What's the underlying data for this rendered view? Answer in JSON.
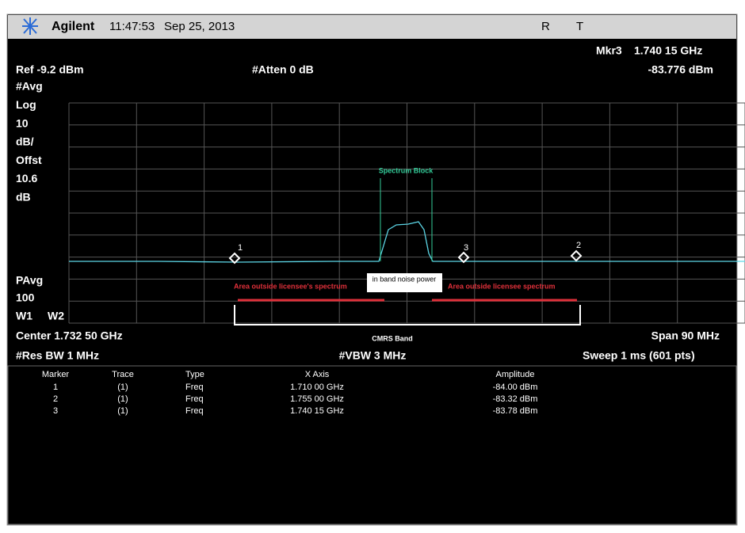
{
  "header": {
    "brand": "Agilent",
    "time": "11:47:53",
    "date": "Sep 25, 2013",
    "flags": [
      "R",
      "T"
    ]
  },
  "marker_readout": {
    "label": "Mkr3",
    "freq": "1.740 15 GHz",
    "amplitude": "-83.776 dBm"
  },
  "ref": "Ref -9.2 dBm",
  "atten": "#Atten 0 dB",
  "left_labels": [
    "#Avg",
    "Log",
    "10",
    "dB/",
    "Offst",
    "10.6",
    "dB"
  ],
  "left_lower_labels": [
    "PAvg",
    "100",
    "W1",
    "W2"
  ],
  "center": "Center 1.732 50 GHz",
  "span": "Span 90 MHz",
  "res_bw": "#Res BW 1 MHz",
  "vbw": "#VBW 3 MHz",
  "sweep": "Sweep 1 ms (601 pts)",
  "annotations": {
    "spectrum_block": "Spectrum Block",
    "outside_left": "Area outside licensee's spectrum",
    "in_band": "in band noise power",
    "outside_right": "Area outside licensee spectrum",
    "cmrs": "CMRS Band"
  },
  "trace_markers": [
    "1",
    "3",
    "2"
  ],
  "table": {
    "columns": [
      "Marker",
      "Trace",
      "Type",
      "X Axis",
      "Amplitude"
    ],
    "rows": [
      [
        "1",
        "(1)",
        "Freq",
        "1.710 00 GHz",
        "-84.00 dBm"
      ],
      [
        "2",
        "(1)",
        "Freq",
        "1.755 00 GHz",
        "-83.32 dBm"
      ],
      [
        "3",
        "(1)",
        "Freq",
        "1.740 15 GHz",
        "-83.78 dBm"
      ]
    ]
  }
}
